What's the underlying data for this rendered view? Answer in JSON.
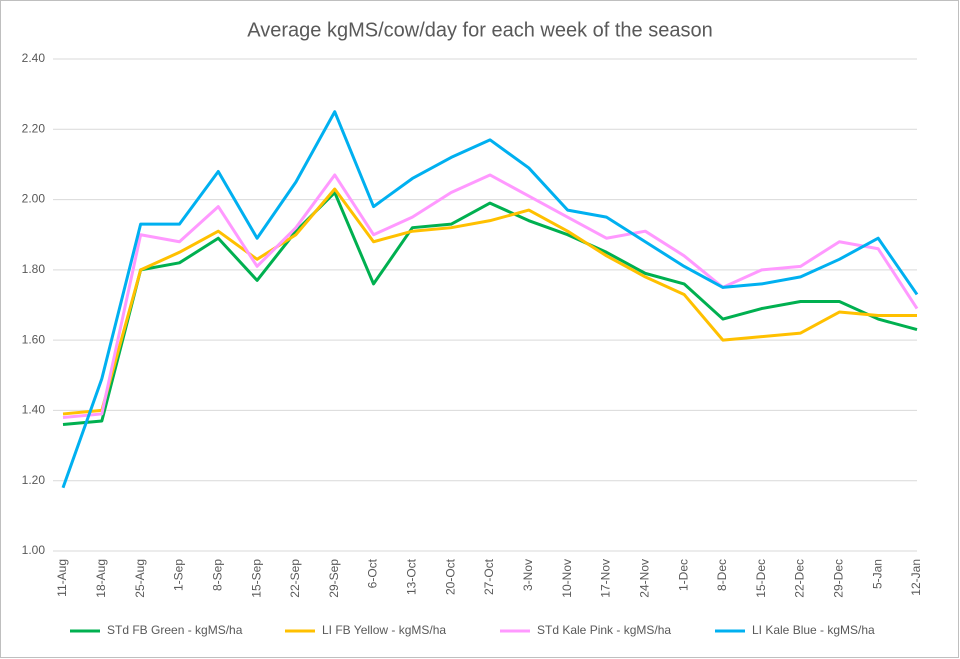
{
  "chart_data": {
    "type": "line",
    "title": "Average kgMS/cow/day for each week of the season",
    "categories": [
      "11-Aug",
      "18-Aug",
      "25-Aug",
      "1-Sep",
      "8-Sep",
      "15-Sep",
      "22-Sep",
      "29-Sep",
      "6-Oct",
      "13-Oct",
      "20-Oct",
      "27-Oct",
      "3-Nov",
      "10-Nov",
      "17-Nov",
      "24-Nov",
      "1-Dec",
      "8-Dec",
      "15-Dec",
      "22-Dec",
      "29-Dec",
      "5-Jan",
      "12-Jan"
    ],
    "series": [
      {
        "name": "STd FB Green - kgMS/ha",
        "color": "#00b050",
        "values": [
          1.36,
          1.37,
          1.8,
          1.82,
          1.89,
          1.77,
          1.91,
          2.02,
          1.76,
          1.92,
          1.93,
          1.99,
          1.94,
          1.9,
          1.85,
          1.79,
          1.76,
          1.66,
          1.69,
          1.71,
          1.71,
          1.66,
          1.63
        ]
      },
      {
        "name": "LI FB Yellow - kgMS/ha",
        "color": "#ffc000",
        "values": [
          1.39,
          1.4,
          1.8,
          1.85,
          1.91,
          1.83,
          1.9,
          2.03,
          1.88,
          1.91,
          1.92,
          1.94,
          1.97,
          1.91,
          1.84,
          1.78,
          1.73,
          1.6,
          1.61,
          1.62,
          1.68,
          1.67,
          1.67
        ]
      },
      {
        "name": "STd Kale Pink - kgMS/ha",
        "color": "#ff99ff",
        "values": [
          1.38,
          1.39,
          1.9,
          1.88,
          1.98,
          1.81,
          1.92,
          2.07,
          1.9,
          1.95,
          2.02,
          2.07,
          2.01,
          1.95,
          1.89,
          1.91,
          1.84,
          1.75,
          1.8,
          1.81,
          1.88,
          1.86,
          1.69
        ]
      },
      {
        "name": "LI Kale Blue - kgMS/ha",
        "color": "#00b0f0",
        "values": [
          1.18,
          1.49,
          1.93,
          1.93,
          2.08,
          1.89,
          2.05,
          2.25,
          1.98,
          2.06,
          2.12,
          2.17,
          2.09,
          1.97,
          1.95,
          1.88,
          1.81,
          1.75,
          1.76,
          1.78,
          1.83,
          1.89,
          1.73
        ]
      }
    ],
    "ylim": [
      1,
      2.4
    ],
    "yticks": [
      {
        "value": 1,
        "label": "1.00"
      },
      {
        "value": 1.2,
        "label": "1.20"
      },
      {
        "value": 1.4,
        "label": "1.40"
      },
      {
        "value": 1.6,
        "label": "1.60"
      },
      {
        "value": 1.8,
        "label": "1.80"
      },
      {
        "value": 2,
        "label": "2.00"
      },
      {
        "value": 2.2,
        "label": "2.20"
      },
      {
        "value": 2.4,
        "label": "2.40"
      }
    ],
    "grid": true,
    "legend": "bottom"
  }
}
